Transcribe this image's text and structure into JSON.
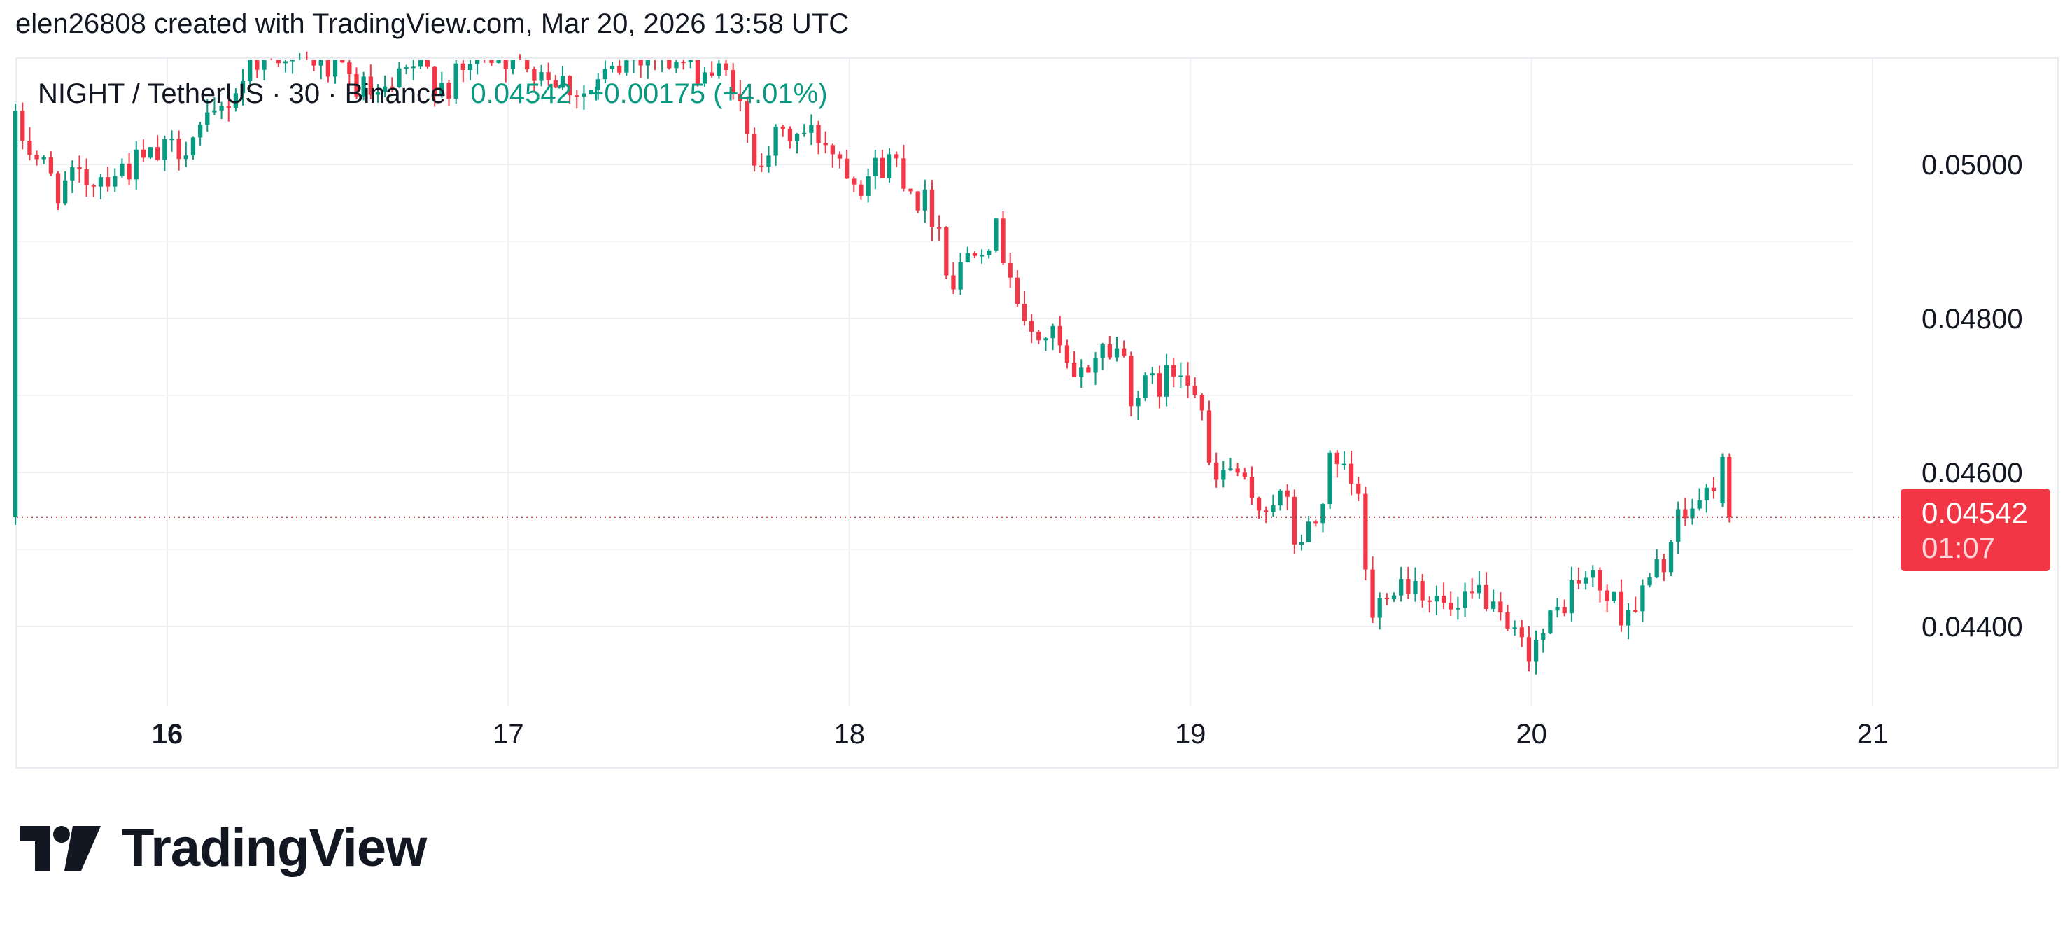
{
  "header": {
    "attribution": "elen26808 created with TradingView.com, Mar 20, 2026 13:58 UTC"
  },
  "legend": {
    "symbol": "NIGHT / TetherUS · 30 · Binance",
    "last": "0.04542",
    "change": "+0.00175 (+4.01%)"
  },
  "price_label": {
    "value": "0.04542",
    "countdown": "01:07"
  },
  "logo": {
    "text": "TradingView"
  },
  "colors": {
    "up": "#089981",
    "down": "#f23645",
    "grid": "#eef0f3",
    "text": "#131722",
    "last_price_line": "#9a2d3a"
  },
  "chart_data": {
    "type": "candlestick",
    "title": "NIGHT / TetherUS · 30 · Binance",
    "interval": "30",
    "x_ticks": [
      {
        "label": "16",
        "day": 16,
        "bold": true
      },
      {
        "label": "17",
        "day": 17
      },
      {
        "label": "18",
        "day": 18
      },
      {
        "label": "19",
        "day": 19
      },
      {
        "label": "20",
        "day": 20
      },
      {
        "label": "21",
        "day": 21
      }
    ],
    "y_ticks": [
      "0.05000",
      "0.04800",
      "0.04600",
      "0.04400"
    ],
    "ylim": [
      0.0431,
      0.0515
    ],
    "xlim": [
      15.555,
      21.0
    ],
    "last_price": 0.04542,
    "grid": true,
    "path": [
      [
        15.56,
        0.0506
      ],
      [
        15.7,
        0.0497
      ],
      [
        15.85,
        0.0499
      ],
      [
        16.0,
        0.0501
      ],
      [
        16.15,
        0.0505
      ],
      [
        16.28,
        0.0514
      ],
      [
        16.4,
        0.0515
      ],
      [
        16.55,
        0.0511
      ],
      [
        16.65,
        0.0508
      ],
      [
        16.75,
        0.0513
      ],
      [
        16.85,
        0.051
      ],
      [
        16.95,
        0.0515
      ],
      [
        17.1,
        0.0513
      ],
      [
        17.25,
        0.0509
      ],
      [
        17.4,
        0.05145
      ],
      [
        17.55,
        0.0513
      ],
      [
        17.68,
        0.0511
      ],
      [
        17.73,
        0.0501
      ],
      [
        17.85,
        0.0504
      ],
      [
        17.95,
        0.05035
      ],
      [
        18.05,
        0.0498
      ],
      [
        18.15,
        0.0501
      ],
      [
        18.22,
        0.0496
      ],
      [
        18.28,
        0.0493
      ],
      [
        18.32,
        0.0484
      ],
      [
        18.38,
        0.049
      ],
      [
        18.45,
        0.0491
      ],
      [
        18.5,
        0.0486
      ],
      [
        18.53,
        0.0478
      ],
      [
        18.62,
        0.04775
      ],
      [
        18.68,
        0.0471
      ],
      [
        18.75,
        0.0476
      ],
      [
        18.82,
        0.0476
      ],
      [
        18.85,
        0.047
      ],
      [
        18.95,
        0.0472
      ],
      [
        19.0,
        0.04745
      ],
      [
        19.05,
        0.047
      ],
      [
        19.08,
        0.0458
      ],
      [
        19.15,
        0.0461
      ],
      [
        19.2,
        0.0455
      ],
      [
        19.27,
        0.0457
      ],
      [
        19.3,
        0.0456
      ],
      [
        19.33,
        0.04505
      ],
      [
        19.4,
        0.0454
      ],
      [
        19.42,
        0.0461
      ],
      [
        19.5,
        0.0458
      ],
      [
        19.52,
        0.0455
      ],
      [
        19.55,
        0.044
      ],
      [
        19.6,
        0.0446
      ],
      [
        19.68,
        0.0446
      ],
      [
        19.75,
        0.0443
      ],
      [
        19.8,
        0.0441
      ],
      [
        19.88,
        0.0445
      ],
      [
        19.92,
        0.044
      ],
      [
        20.0,
        0.0437
      ],
      [
        20.06,
        0.0439
      ],
      [
        20.1,
        0.0442
      ],
      [
        20.15,
        0.0446
      ],
      [
        20.2,
        0.0446
      ],
      [
        20.28,
        0.0442
      ],
      [
        20.33,
        0.0443
      ],
      [
        20.4,
        0.0448
      ],
      [
        20.45,
        0.0453
      ],
      [
        20.5,
        0.0456
      ],
      [
        20.55,
        0.0457
      ],
      [
        20.56,
        0.0462
      ],
      [
        20.58,
        0.04542
      ]
    ],
    "final_candles": [
      {
        "t": 20.56,
        "o": 0.0456,
        "h": 0.04625,
        "l": 0.04555,
        "c": 0.0462
      },
      {
        "t": 20.58,
        "o": 0.0462,
        "h": 0.04625,
        "l": 0.04535,
        "c": 0.04542
      }
    ]
  }
}
